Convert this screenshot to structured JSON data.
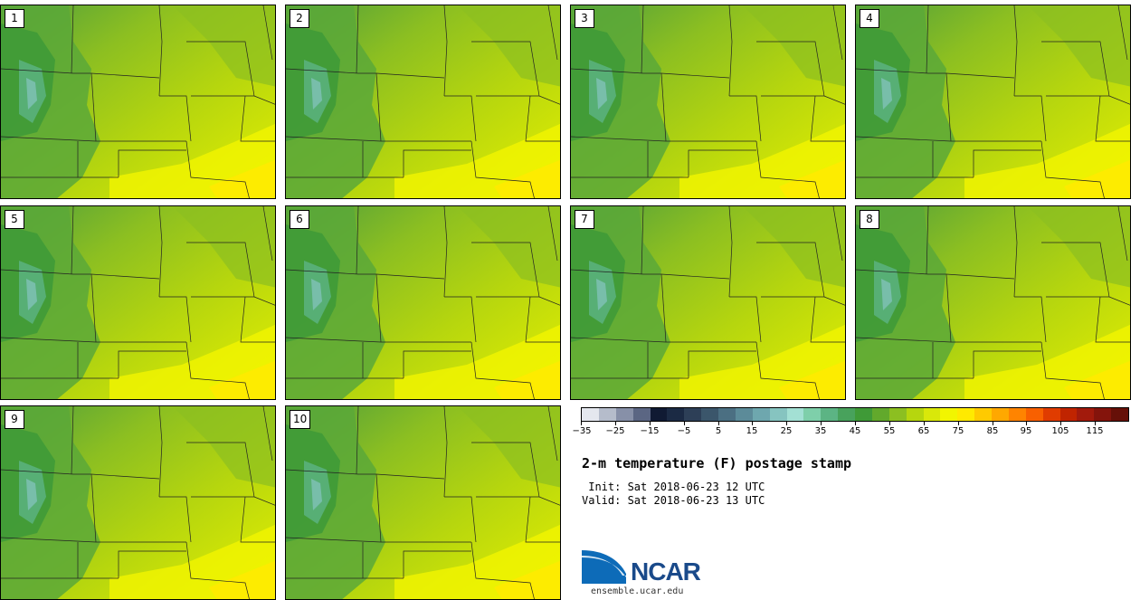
{
  "panels": [
    "1",
    "2",
    "3",
    "4",
    "5",
    "6",
    "7",
    "8",
    "9",
    "10"
  ],
  "colorbar": {
    "colors": [
      "#e4e7ee",
      "#b5bccb",
      "#8790a8",
      "#5b6683",
      "#101a33",
      "#1b2a44",
      "#2d3f57",
      "#3b566b",
      "#4b6f82",
      "#5c8b99",
      "#6ea7ae",
      "#86c4c0",
      "#a3e0d4",
      "#7ecfaa",
      "#5cb484",
      "#48a25c",
      "#3f9a37",
      "#62a92c",
      "#8cbf21",
      "#b6d60e",
      "#d9e80a",
      "#f2f500",
      "#ffea00",
      "#ffca00",
      "#ffa800",
      "#ff8400",
      "#f86000",
      "#e03c00",
      "#c02400",
      "#a21a0c",
      "#84140c",
      "#661008"
    ],
    "tick_labels": [
      "−35",
      "−25",
      "−15",
      "−5",
      "5",
      "15",
      "25",
      "35",
      "45",
      "55",
      "65",
      "75",
      "85",
      "95",
      "105",
      "115"
    ]
  },
  "title": "2-m temperature (F) postage stamp",
  "init": " Init: Sat 2018-06-23 12 UTC",
  "valid": "Valid: Sat 2018-06-23 13 UTC",
  "logo_text": "NCAR",
  "url": "ensemble.ucar.edu"
}
